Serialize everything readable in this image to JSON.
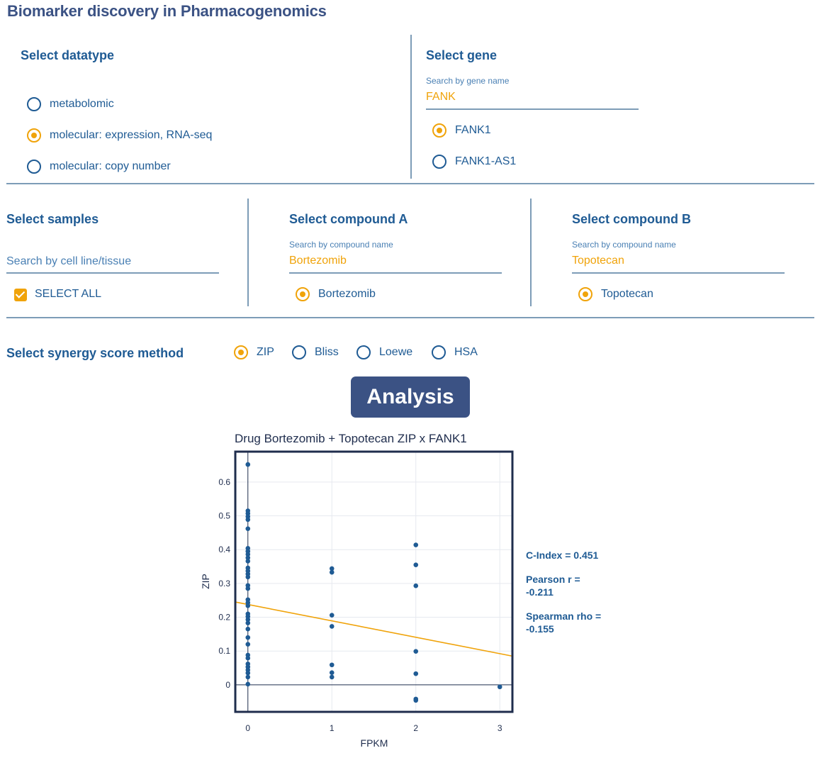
{
  "app": {
    "title": "Biomarker discovery in Pharmacogenomics"
  },
  "datatype": {
    "title": "Select datatype",
    "options": [
      {
        "label": "metabolomic",
        "checked": false
      },
      {
        "label": "molecular: expression, RNA-seq",
        "checked": true
      },
      {
        "label": "molecular: copy number",
        "checked": false
      }
    ]
  },
  "gene": {
    "title": "Select gene",
    "search_label": "Search by gene name",
    "search_value": "FANK",
    "options": [
      {
        "label": "FANK1",
        "checked": true
      },
      {
        "label": "FANK1-AS1",
        "checked": false
      }
    ]
  },
  "samples": {
    "title": "Select samples",
    "search_placeholder": "Search by cell line/tissue",
    "select_all_label": "SELECT ALL"
  },
  "compound_a": {
    "title": "Select compound A",
    "search_label": "Search by compound name",
    "search_value": "Bortezomib",
    "options": [
      {
        "label": "Bortezomib",
        "checked": true
      }
    ]
  },
  "compound_b": {
    "title": "Select compound B",
    "search_label": "Search by compound name",
    "search_value": "Topotecan",
    "options": [
      {
        "label": "Topotecan",
        "checked": true
      }
    ]
  },
  "synergy": {
    "title": "Select synergy score method",
    "options": [
      {
        "label": "ZIP",
        "checked": true
      },
      {
        "label": "Bliss",
        "checked": false
      },
      {
        "label": "Loewe",
        "checked": false
      },
      {
        "label": "HSA",
        "checked": false
      }
    ]
  },
  "analysis_button": "Analysis",
  "stats": {
    "c_index": "C-Index = 0.451",
    "pearson_line1": "Pearson r =",
    "pearson_line2": "-0.211",
    "spearman_line1": "Spearman rho =",
    "spearman_line2": "-0.155"
  },
  "colors": {
    "accent": "#f0a30a",
    "primary": "#1f5b94",
    "button": "#3b5284",
    "point": "#1f5b94",
    "fit_line": "#f0a30a"
  },
  "chart_data": {
    "type": "scatter",
    "title": "Drug Bortezomib + Topotecan ZIP x FANK1",
    "xlabel": "FPKM",
    "ylabel": "ZIP",
    "xlim": [
      -0.15,
      3.15
    ],
    "ylim": [
      -0.08,
      0.69
    ],
    "xticks": [
      0,
      1,
      2,
      3
    ],
    "yticks": [
      0,
      0.1,
      0.2,
      0.3,
      0.4,
      0.5,
      0.6
    ],
    "ytick_labels": [
      "0",
      "0.1",
      "0.2",
      "0.3",
      "0.4",
      "0.5",
      "0.6"
    ],
    "grid": true,
    "points": [
      [
        0,
        0.652
      ],
      [
        0,
        0.515
      ],
      [
        0,
        0.507
      ],
      [
        0,
        0.498
      ],
      [
        0,
        0.489
      ],
      [
        0,
        0.462
      ],
      [
        0,
        0.404
      ],
      [
        0,
        0.395
      ],
      [
        0,
        0.386
      ],
      [
        0,
        0.376
      ],
      [
        0,
        0.366
      ],
      [
        0,
        0.346
      ],
      [
        0,
        0.337
      ],
      [
        0,
        0.328
      ],
      [
        0,
        0.319
      ],
      [
        0,
        0.294
      ],
      [
        0,
        0.285
      ],
      [
        0,
        0.252
      ],
      [
        0,
        0.243
      ],
      [
        0,
        0.234
      ],
      [
        0,
        0.21
      ],
      [
        0,
        0.202
      ],
      [
        0,
        0.193
      ],
      [
        0,
        0.183
      ],
      [
        0,
        0.165
      ],
      [
        0,
        0.14
      ],
      [
        0,
        0.12
      ],
      [
        0,
        0.088
      ],
      [
        0,
        0.079
      ],
      [
        0,
        0.062
      ],
      [
        0,
        0.053
      ],
      [
        0,
        0.044
      ],
      [
        0,
        0.035
      ],
      [
        0,
        0.023
      ],
      [
        0,
        0.002
      ],
      [
        1,
        0.344
      ],
      [
        1,
        0.333
      ],
      [
        1,
        0.206
      ],
      [
        1,
        0.173
      ],
      [
        1,
        0.059
      ],
      [
        1,
        0.036
      ],
      [
        1,
        0.023
      ],
      [
        2,
        0.414
      ],
      [
        2,
        0.355
      ],
      [
        2,
        0.293
      ],
      [
        2,
        0.099
      ],
      [
        2,
        0.033
      ],
      [
        2,
        -0.042
      ],
      [
        2,
        -0.046
      ],
      [
        3,
        -0.006
      ]
    ],
    "fit_line": {
      "x": [
        -0.15,
        3.15
      ],
      "y": [
        0.245,
        0.085
      ]
    }
  }
}
